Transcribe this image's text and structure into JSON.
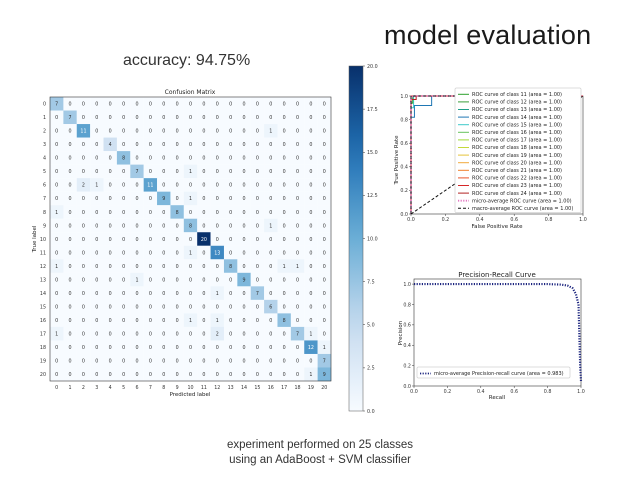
{
  "slide": {
    "title": "model evaluation",
    "accuracy_text": "accuracy: 94.75%",
    "footer_line1": "experiment performed on 25 classes",
    "footer_line2": "using an AdaBoost + SVM classifier"
  },
  "colors": {
    "text": "#222222",
    "accent": "#08306b"
  },
  "chart_data": [
    {
      "type": "heatmap",
      "title": "Confusion Matrix",
      "xlabel": "Predicted label",
      "ylabel": "True label",
      "labels": [
        "0",
        "1",
        "2",
        "3",
        "4",
        "5",
        "6",
        "7",
        "8",
        "9",
        "10",
        "11",
        "12",
        "13",
        "14",
        "15",
        "16",
        "17",
        "18",
        "19",
        "20"
      ],
      "matrix": [
        [
          7,
          0,
          0,
          0,
          0,
          0,
          0,
          0,
          0,
          0,
          0,
          0,
          0,
          0,
          0,
          0,
          0,
          0,
          0,
          0,
          0
        ],
        [
          0,
          7,
          0,
          0,
          0,
          0,
          0,
          0,
          0,
          0,
          0,
          0,
          0,
          0,
          0,
          0,
          0,
          0,
          0,
          0,
          0
        ],
        [
          0,
          0,
          11,
          0,
          0,
          0,
          0,
          0,
          0,
          0,
          0,
          0,
          0,
          0,
          0,
          0,
          1,
          0,
          0,
          0,
          0
        ],
        [
          0,
          0,
          0,
          0,
          4,
          0,
          0,
          0,
          0,
          0,
          0,
          0,
          0,
          0,
          0,
          0,
          0,
          0,
          0,
          0,
          0
        ],
        [
          0,
          0,
          0,
          0,
          0,
          8,
          0,
          0,
          0,
          0,
          0,
          0,
          0,
          0,
          0,
          0,
          0,
          0,
          0,
          0,
          0
        ],
        [
          0,
          0,
          0,
          0,
          0,
          0,
          7,
          0,
          0,
          0,
          1,
          0,
          0,
          0,
          0,
          0,
          0,
          0,
          0,
          0,
          0
        ],
        [
          0,
          0,
          2,
          1,
          0,
          0,
          0,
          11,
          0,
          0,
          0,
          0,
          0,
          0,
          0,
          0,
          0,
          0,
          0,
          0,
          0
        ],
        [
          0,
          0,
          0,
          0,
          0,
          0,
          0,
          0,
          9,
          0,
          1,
          0,
          0,
          0,
          0,
          0,
          0,
          0,
          0,
          0,
          0
        ],
        [
          1,
          0,
          0,
          0,
          0,
          0,
          0,
          0,
          0,
          8,
          0,
          0,
          0,
          0,
          0,
          0,
          0,
          0,
          0,
          0,
          0
        ],
        [
          0,
          0,
          0,
          0,
          0,
          0,
          0,
          0,
          0,
          0,
          8,
          0,
          0,
          0,
          0,
          0,
          1,
          0,
          0,
          0,
          0
        ],
        [
          0,
          0,
          0,
          0,
          0,
          0,
          0,
          0,
          0,
          0,
          0,
          20,
          0,
          0,
          0,
          0,
          0,
          0,
          0,
          0,
          0
        ],
        [
          0,
          0,
          0,
          0,
          0,
          0,
          0,
          0,
          0,
          0,
          1,
          0,
          13,
          0,
          0,
          0,
          0,
          0,
          0,
          0,
          0
        ],
        [
          1,
          0,
          0,
          0,
          0,
          0,
          0,
          0,
          0,
          0,
          0,
          0,
          0,
          8,
          0,
          0,
          0,
          1,
          1,
          0,
          0
        ],
        [
          0,
          0,
          0,
          0,
          0,
          0,
          1,
          0,
          0,
          0,
          0,
          0,
          0,
          0,
          9,
          0,
          0,
          0,
          0,
          0,
          0
        ],
        [
          0,
          0,
          0,
          0,
          0,
          0,
          0,
          0,
          0,
          0,
          0,
          0,
          1,
          0,
          0,
          7,
          0,
          0,
          0,
          0,
          0
        ],
        [
          0,
          0,
          0,
          0,
          0,
          0,
          0,
          0,
          0,
          0,
          0,
          0,
          0,
          0,
          0,
          0,
          6,
          0,
          0,
          0,
          0
        ],
        [
          0,
          0,
          0,
          0,
          0,
          0,
          0,
          0,
          0,
          0,
          1,
          0,
          1,
          0,
          0,
          0,
          0,
          8,
          0,
          0,
          0
        ],
        [
          1,
          0,
          0,
          0,
          0,
          0,
          0,
          0,
          0,
          0,
          0,
          0,
          2,
          0,
          0,
          0,
          0,
          0,
          7,
          1,
          0
        ],
        [
          0,
          0,
          0,
          0,
          0,
          0,
          0,
          0,
          0,
          0,
          0,
          0,
          0,
          0,
          0,
          0,
          0,
          0,
          0,
          12,
          1
        ],
        [
          0,
          0,
          0,
          0,
          0,
          0,
          0,
          0,
          0,
          0,
          0,
          0,
          0,
          0,
          0,
          0,
          0,
          0,
          0,
          0,
          7
        ],
        [
          0,
          0,
          0,
          0,
          0,
          0,
          0,
          0,
          0,
          0,
          0,
          0,
          0,
          0,
          0,
          0,
          0,
          0,
          0,
          1,
          9
        ]
      ],
      "colorbar": {
        "range": [
          0,
          20
        ],
        "ticks": [
          "0.0",
          "2.5",
          "5.0",
          "7.5",
          "10.0",
          "12.5",
          "15.0",
          "17.5",
          "20.0"
        ]
      }
    },
    {
      "type": "line",
      "title": "",
      "xlabel": "False Positive Rate",
      "ylabel": "True Positive Rate",
      "xlim": [
        0.0,
        1.0
      ],
      "ylim": [
        0.0,
        1.0
      ],
      "xticks": [
        "0.0",
        "0.2",
        "0.4",
        "0.6",
        "0.8",
        "1.0"
      ],
      "yticks": [
        "0.0",
        "0.2",
        "0.4",
        "0.6",
        "0.8",
        "1.0"
      ],
      "legend": [
        {
          "label": "ROC curve of class 11 (area = 1.00)",
          "color": "#2ca02c",
          "dash": "solid"
        },
        {
          "label": "ROC curve of class 12 (area = 1.00)",
          "color": "#3a9e3a",
          "dash": "solid"
        },
        {
          "label": "ROC curve of class 13 (area = 1.00)",
          "color": "#1f9e89",
          "dash": "solid"
        },
        {
          "label": "ROC curve of class 14 (area = 1.00)",
          "color": "#1f77b4",
          "dash": "solid"
        },
        {
          "label": "ROC curve of class 15 (area = 1.00)",
          "color": "#3ec9c9",
          "dash": "solid"
        },
        {
          "label": "ROC curve of class 16 (area = 1.00)",
          "color": "#66c25c",
          "dash": "solid"
        },
        {
          "label": "ROC curve of class 17 (area = 1.00)",
          "color": "#9fd93a",
          "dash": "solid"
        },
        {
          "label": "ROC curve of class 18 (area = 1.00)",
          "color": "#c4d93a",
          "dash": "solid"
        },
        {
          "label": "ROC curve of class 19 (area = 1.00)",
          "color": "#e5c33a",
          "dash": "solid"
        },
        {
          "label": "ROC curve of class 20 (area = 1.00)",
          "color": "#f2a93b",
          "dash": "solid"
        },
        {
          "label": "ROC curve of class 21 (area = 1.00)",
          "color": "#f07f2a",
          "dash": "solid"
        },
        {
          "label": "ROC curve of class 22 (area = 1.00)",
          "color": "#e8552a",
          "dash": "solid"
        },
        {
          "label": "ROC curve of class 23 (area = 1.00)",
          "color": "#d62728",
          "dash": "solid"
        },
        {
          "label": "ROC curve of class 24 (area = 1.00)",
          "color": "#b22222",
          "dash": "solid"
        },
        {
          "label": "micro-average ROC curve (area = 1.00)",
          "color": "#e377c2",
          "dash": "dotted"
        },
        {
          "label": "macro-average ROC curve (area = 1.00)",
          "color": "#111111",
          "dash": "dashed"
        }
      ],
      "series": [
        {
          "name": "class 14",
          "color": "#1f77b4",
          "x": [
            0,
            0.0,
            0.02,
            0.02,
            0.12,
            0.12,
            1.0
          ],
          "y": [
            0,
            0.82,
            0.82,
            0.92,
            0.92,
            1.0,
            1.0
          ]
        },
        {
          "name": "class 15",
          "color": "#3ec9c9",
          "x": [
            0,
            0.0,
            0.015,
            0.015,
            1.0
          ],
          "y": [
            0,
            0.9,
            0.9,
            1.0,
            1.0
          ]
        },
        {
          "name": "class 11",
          "color": "#2ca02c",
          "x": [
            0,
            0.0,
            0.01,
            0.01,
            1.0
          ],
          "y": [
            0,
            0.94,
            0.94,
            1.0,
            1.0
          ]
        },
        {
          "name": "class 24",
          "color": "#b22222",
          "x": [
            0,
            0.0,
            0.03,
            0.03,
            1.0
          ],
          "y": [
            0,
            0.97,
            0.97,
            1.0,
            1.0
          ]
        },
        {
          "name": "class 23",
          "color": "#d62728",
          "x": [
            0,
            0.0,
            1.0
          ],
          "y": [
            0,
            1.0,
            1.0
          ]
        },
        {
          "name": "micro-average",
          "color": "#e377c2",
          "dash": "dotted",
          "x": [
            0,
            0.0,
            0.01,
            1.0
          ],
          "y": [
            0,
            0.97,
            1.0,
            1.0
          ]
        },
        {
          "name": "macro-average",
          "color": "#111111",
          "dash": "dashed",
          "x": [
            0,
            0.0,
            1.0
          ],
          "y": [
            0,
            1.0,
            1.0
          ]
        },
        {
          "name": "chance",
          "color": "#111111",
          "dash": "dashed",
          "x": [
            0,
            1.0
          ],
          "y": [
            0,
            1.0
          ]
        }
      ]
    },
    {
      "type": "line",
      "title": "Precision-Recall Curve",
      "xlabel": "Recall",
      "ylabel": "Precision",
      "xlim": [
        0.0,
        1.0
      ],
      "ylim": [
        0.0,
        1.05
      ],
      "xticks": [
        "0.0",
        "0.2",
        "0.4",
        "0.6",
        "0.8",
        "1.0"
      ],
      "yticks": [
        "0.0",
        "0.2",
        "0.4",
        "0.6",
        "0.8",
        "1.0"
      ],
      "legend": [
        {
          "label": "micro-average Precision-recall curve (area = 0.983)",
          "color": "#1a237e",
          "dash": "dotted"
        }
      ],
      "series": [
        {
          "name": "micro-average Precision-recall curve (area = 0.983)",
          "color": "#1a237e",
          "dash": "dotted",
          "x": [
            0.0,
            0.2,
            0.4,
            0.6,
            0.8,
            0.88,
            0.92,
            0.95,
            0.97,
            0.985,
            0.99,
            0.995,
            1.0
          ],
          "y": [
            1.0,
            1.0,
            1.0,
            1.0,
            1.0,
            0.995,
            0.985,
            0.96,
            0.9,
            0.8,
            0.5,
            0.2,
            0.05
          ]
        }
      ]
    }
  ]
}
